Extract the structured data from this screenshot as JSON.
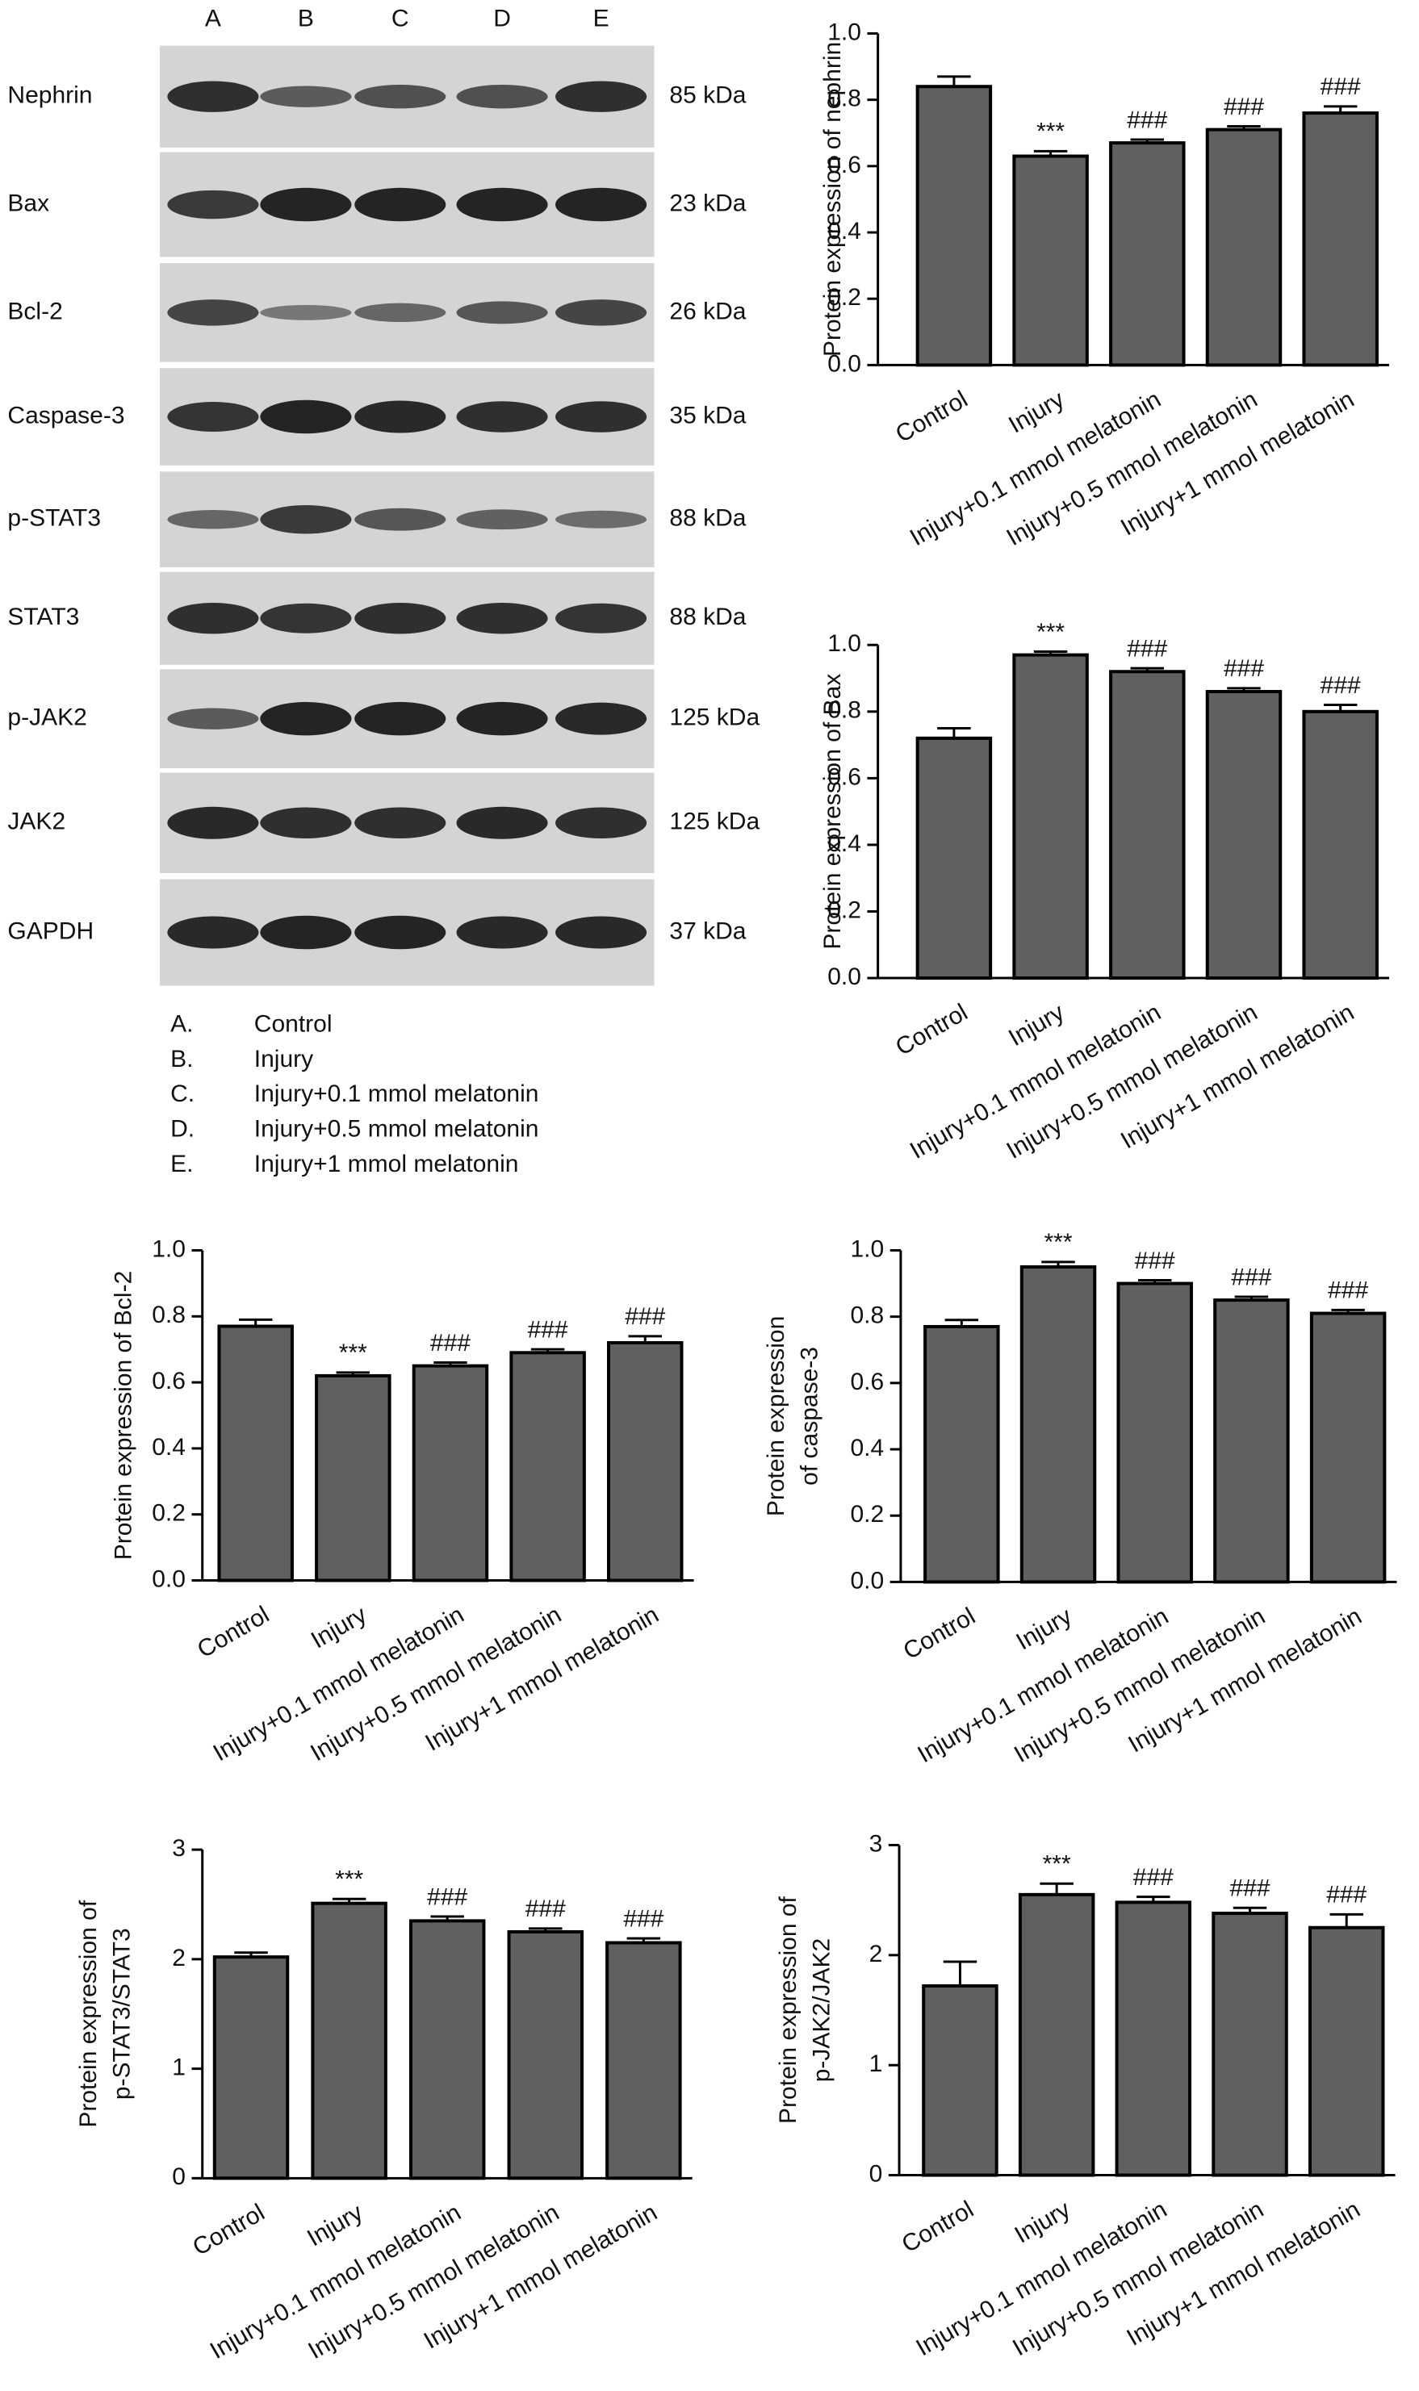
{
  "blot": {
    "lanes": [
      "A",
      "B",
      "C",
      "D",
      "E"
    ],
    "rows": [
      {
        "protein": "Nephrin",
        "size": "85 kDa"
      },
      {
        "protein": "Bax",
        "size": "23 kDa"
      },
      {
        "protein": "Bcl-2",
        "size": "26 kDa"
      },
      {
        "protein": "Caspase-3",
        "size": "35 kDa"
      },
      {
        "protein": "p-STAT3",
        "size": "88 kDa"
      },
      {
        "protein": "STAT3",
        "size": "88 kDa"
      },
      {
        "protein": "p-JAK2",
        "size": "125 kDa"
      },
      {
        "protein": "JAK2",
        "size": "125 kDa"
      },
      {
        "protein": "GAPDH",
        "size": "37 kDa"
      }
    ],
    "legend": [
      {
        "letter": "A.",
        "name": "Control"
      },
      {
        "letter": "B.",
        "name": "Injury"
      },
      {
        "letter": "C.",
        "name": "Injury+0.1 mmol melatonin"
      },
      {
        "letter": "D.",
        "name": "Injury+0.5 mmol melatonin"
      },
      {
        "letter": "E.",
        "name": "Injury+1 mmol melatonin"
      }
    ]
  },
  "chart_data": [
    {
      "type": "bar",
      "ylabel": [
        "Protein expression of nephrin"
      ],
      "categories": [
        "Control",
        "Injury",
        "Injury+0.1 mmol melatonin",
        "Injury+0.5 mmol melatonin",
        "Injury+1 mmol melatonin"
      ],
      "values": [
        0.84,
        0.63,
        0.67,
        0.71,
        0.76
      ],
      "errors": [
        0.03,
        0.015,
        0.01,
        0.01,
        0.02
      ],
      "annotations": [
        null,
        "***",
        "###",
        "###",
        "###"
      ],
      "color": "#606060",
      "ylim": [
        0,
        1
      ],
      "yticks": [
        {
          "value": 0,
          "label": "0.0"
        },
        0.2,
        0.4,
        0.6,
        0.8,
        {
          "value": 1,
          "label": "1.0"
        }
      ]
    },
    {
      "type": "bar",
      "ylabel": [
        "Protein expression of Bax"
      ],
      "categories": [
        "Control",
        "Injury",
        "Injury+0.1 mmol melatonin",
        "Injury+0.5 mmol melatonin",
        "Injury+1 mmol melatonin"
      ],
      "values": [
        0.72,
        0.97,
        0.92,
        0.86,
        0.8
      ],
      "errors": [
        0.03,
        0.01,
        0.01,
        0.01,
        0.02
      ],
      "annotations": [
        null,
        "***",
        "###",
        "###",
        "###"
      ],
      "color": "#606060",
      "ylim": [
        0,
        1
      ],
      "yticks": [
        {
          "value": 0,
          "label": "0.0"
        },
        0.2,
        0.4,
        0.6,
        0.8,
        {
          "value": 1,
          "label": "1.0"
        }
      ]
    },
    {
      "type": "bar",
      "ylabel": [
        "Protein expression of Bcl-2"
      ],
      "categories": [
        "Control",
        "Injury",
        "Injury+0.1 mmol melatonin",
        "Injury+0.5 mmol melatonin",
        "Injury+1 mmol melatonin"
      ],
      "values": [
        0.77,
        0.62,
        0.65,
        0.69,
        0.72
      ],
      "errors": [
        0.02,
        0.01,
        0.01,
        0.01,
        0.02
      ],
      "annotations": [
        null,
        "***",
        "###",
        "###",
        "###"
      ],
      "color": "#606060",
      "ylim": [
        0,
        1
      ],
      "yticks": [
        {
          "value": 0,
          "label": "0.0"
        },
        0.2,
        0.4,
        0.6,
        0.8,
        {
          "value": 1,
          "label": "1.0"
        }
      ]
    },
    {
      "type": "bar",
      "ylabel": [
        "Protein expression",
        "of caspase-3"
      ],
      "categories": [
        "Control",
        "Injury",
        "Injury+0.1 mmol melatonin",
        "Injury+0.5 mmol melatonin",
        "Injury+1 mmol melatonin"
      ],
      "values": [
        0.77,
        0.95,
        0.9,
        0.85,
        0.81
      ],
      "errors": [
        0.02,
        0.015,
        0.01,
        0.01,
        0.01
      ],
      "annotations": [
        null,
        "***",
        "###",
        "###",
        "###"
      ],
      "color": "#606060",
      "ylim": [
        0,
        1
      ],
      "yticks": [
        {
          "value": 0,
          "label": "0.0"
        },
        0.2,
        0.4,
        0.6,
        0.8,
        {
          "value": 1,
          "label": "1.0"
        }
      ]
    },
    {
      "type": "bar",
      "ylabel": [
        "Protein expression of",
        "p-STAT3/STAT3"
      ],
      "categories": [
        "Control",
        "Injury",
        "Injury+0.1 mmol melatonin",
        "Injury+0.5 mmol melatonin",
        "Injury+1 mmol melatonin"
      ],
      "values": [
        2.02,
        2.51,
        2.35,
        2.25,
        2.15
      ],
      "errors": [
        0.04,
        0.04,
        0.04,
        0.03,
        0.04
      ],
      "annotations": [
        null,
        "***",
        "###",
        "###",
        "###"
      ],
      "color": "#606060",
      "ylim": [
        0,
        3
      ],
      "yticks": [
        0,
        1,
        2,
        3
      ]
    },
    {
      "type": "bar",
      "ylabel": [
        "Protein expression of",
        "p-JAK2/JAK2"
      ],
      "categories": [
        "Control",
        "Injury",
        "Injury+0.1 mmol melatonin",
        "Injury+0.5 mmol melatonin",
        "Injury+1 mmol melatonin"
      ],
      "values": [
        1.72,
        2.55,
        2.48,
        2.38,
        2.25
      ],
      "errors": [
        0.22,
        0.1,
        0.05,
        0.05,
        0.12
      ],
      "annotations": [
        null,
        "***",
        "###",
        "###",
        "###"
      ],
      "color": "#606060",
      "ylim": [
        0,
        3
      ],
      "yticks": [
        0,
        1,
        2,
        3
      ]
    }
  ]
}
